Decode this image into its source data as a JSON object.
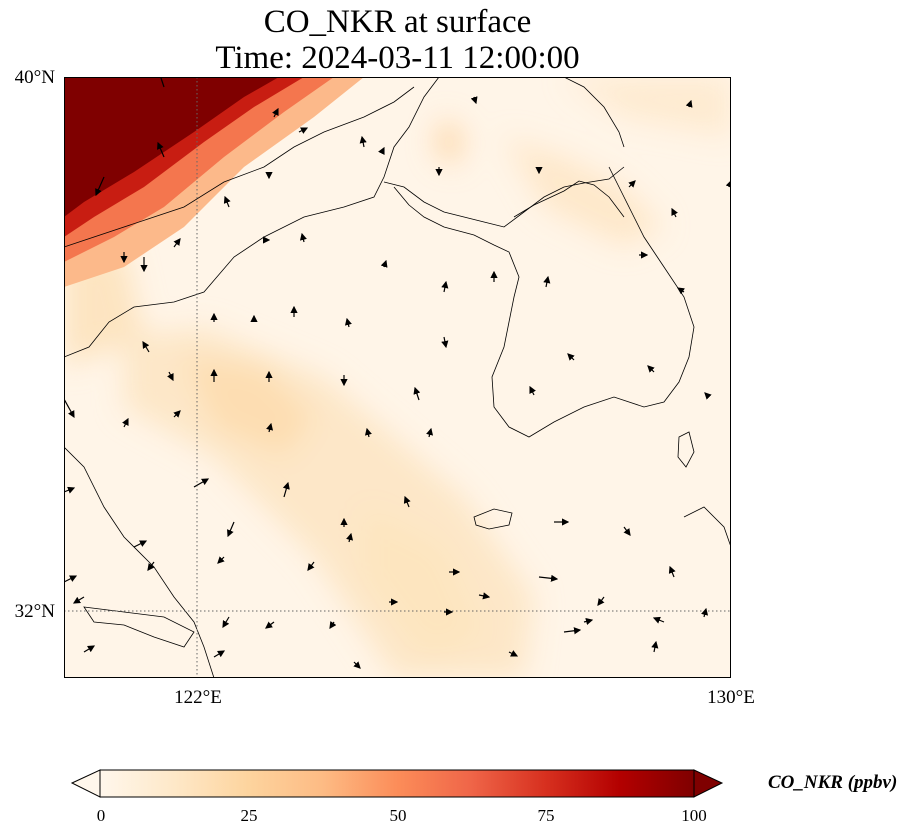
{
  "title": {
    "line1": "CO_NKR at surface",
    "line2": "Time: 2024-03-11 12:00:00"
  },
  "axes": {
    "lat_ticks": [
      "40°N",
      "32°N"
    ],
    "lon_ticks": [
      "122°E",
      "130°E"
    ],
    "lat_range": [
      31,
      40
    ],
    "lon_range": [
      120,
      130
    ],
    "gridlines": "dotted"
  },
  "colorbar": {
    "label": "CO_NKR (ppbv)",
    "ticks": [
      "0",
      "25",
      "50",
      "75",
      "100"
    ],
    "range": [
      0,
      100
    ],
    "extend": "both",
    "colormap": "OrRd"
  },
  "colors": {
    "low": "#fff7ec",
    "mid": "#fdd49e",
    "high": "#d7301f",
    "max": "#7f0000"
  }
}
